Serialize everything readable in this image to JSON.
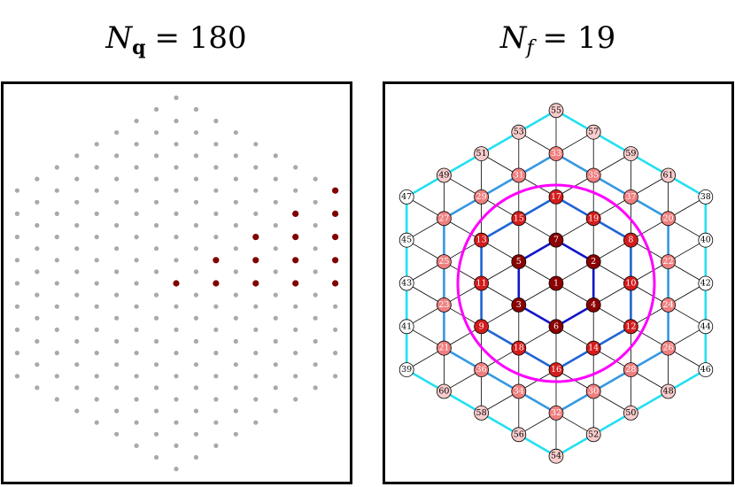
{
  "panels": [
    {
      "title": {
        "symbol": "N",
        "subscript": "q",
        "rest": "= 180"
      }
    },
    {
      "title": {
        "symbol": "N",
        "subscript": "f",
        "rest": "= 19"
      },
      "nodes": [
        {
          "label": "1",
          "color": "#8b0000"
        },
        {
          "label": "2",
          "color": "#8b0000"
        },
        {
          "label": "3",
          "color": "#8b0000"
        },
        {
          "label": "4",
          "color": "#8b0000"
        },
        {
          "label": "5",
          "color": "#8b0000"
        },
        {
          "label": "6",
          "color": "#8b0000"
        },
        {
          "label": "7",
          "color": "#8b0000"
        },
        {
          "label": "8",
          "color": "#d41c1c"
        },
        {
          "label": "9",
          "color": "#d41c1c"
        },
        {
          "label": "10",
          "color": "#d41c1c"
        },
        {
          "label": "11",
          "color": "#d41c1c"
        },
        {
          "label": "12",
          "color": "#d41c1c"
        },
        {
          "label": "13",
          "color": "#d41c1c"
        },
        {
          "label": "14",
          "color": "#d41c1c"
        },
        {
          "label": "15",
          "color": "#d41c1c"
        },
        {
          "label": "16",
          "color": "#d41c1c"
        },
        {
          "label": "17",
          "color": "#d41c1c"
        },
        {
          "label": "18",
          "color": "#d41c1c"
        },
        {
          "label": "19",
          "color": "#d41c1c"
        },
        {
          "label": "20",
          "color": "#ef7f7f"
        },
        {
          "label": "21",
          "color": "#ef7f7f"
        },
        {
          "label": "22",
          "color": "#ef7f7f"
        },
        {
          "label": "23",
          "color": "#ef7f7f"
        },
        {
          "label": "24",
          "color": "#ef7f7f"
        },
        {
          "label": "25",
          "color": "#ef7f7f"
        },
        {
          "label": "26",
          "color": "#ef7f7f"
        },
        {
          "label": "27",
          "color": "#ef7f7f"
        },
        {
          "label": "28",
          "color": "#ef7f7f"
        },
        {
          "label": "29",
          "color": "#ef7f7f"
        },
        {
          "label": "30",
          "color": "#ef7f7f"
        },
        {
          "label": "31",
          "color": "#ef7f7f"
        },
        {
          "label": "32",
          "color": "#ef7f7f"
        },
        {
          "label": "33",
          "color": "#ef7f7f"
        },
        {
          "label": "34",
          "color": "#ef7f7f"
        },
        {
          "label": "35",
          "color": "#ef7f7f"
        },
        {
          "label": "36",
          "color": "#ef7f7f"
        },
        {
          "label": "37",
          "color": "#ef7f7f"
        },
        {
          "label": "38",
          "color": "#ffffff"
        },
        {
          "label": "39",
          "color": "#ffffff"
        },
        {
          "label": "40",
          "color": "#ffffff"
        },
        {
          "label": "41",
          "color": "#ffffff"
        },
        {
          "label": "42",
          "color": "#ffffff"
        },
        {
          "label": "43",
          "color": "#ffffff"
        },
        {
          "label": "44",
          "color": "#ffffff"
        },
        {
          "label": "45",
          "color": "#ffffff"
        },
        {
          "label": "46",
          "color": "#ffffff"
        },
        {
          "label": "47",
          "color": "#ffffff"
        },
        {
          "label": "48",
          "color": "#f8cccc"
        },
        {
          "label": "49",
          "color": "#f8cccc"
        },
        {
          "label": "50",
          "color": "#f8cccc"
        },
        {
          "label": "51",
          "color": "#f8cccc"
        },
        {
          "label": "52",
          "color": "#f8cccc"
        },
        {
          "label": "53",
          "color": "#f8cccc"
        },
        {
          "label": "54",
          "color": "#f8cccc"
        },
        {
          "label": "55",
          "color": "#f8cccc"
        },
        {
          "label": "56",
          "color": "#f8cccc"
        },
        {
          "label": "57",
          "color": "#f8cccc"
        },
        {
          "label": "58",
          "color": "#f8cccc"
        },
        {
          "label": "59",
          "color": "#f8cccc"
        },
        {
          "label": "60",
          "color": "#f8cccc"
        },
        {
          "label": "61",
          "color": "#f8cccc"
        }
      ]
    }
  ]
}
